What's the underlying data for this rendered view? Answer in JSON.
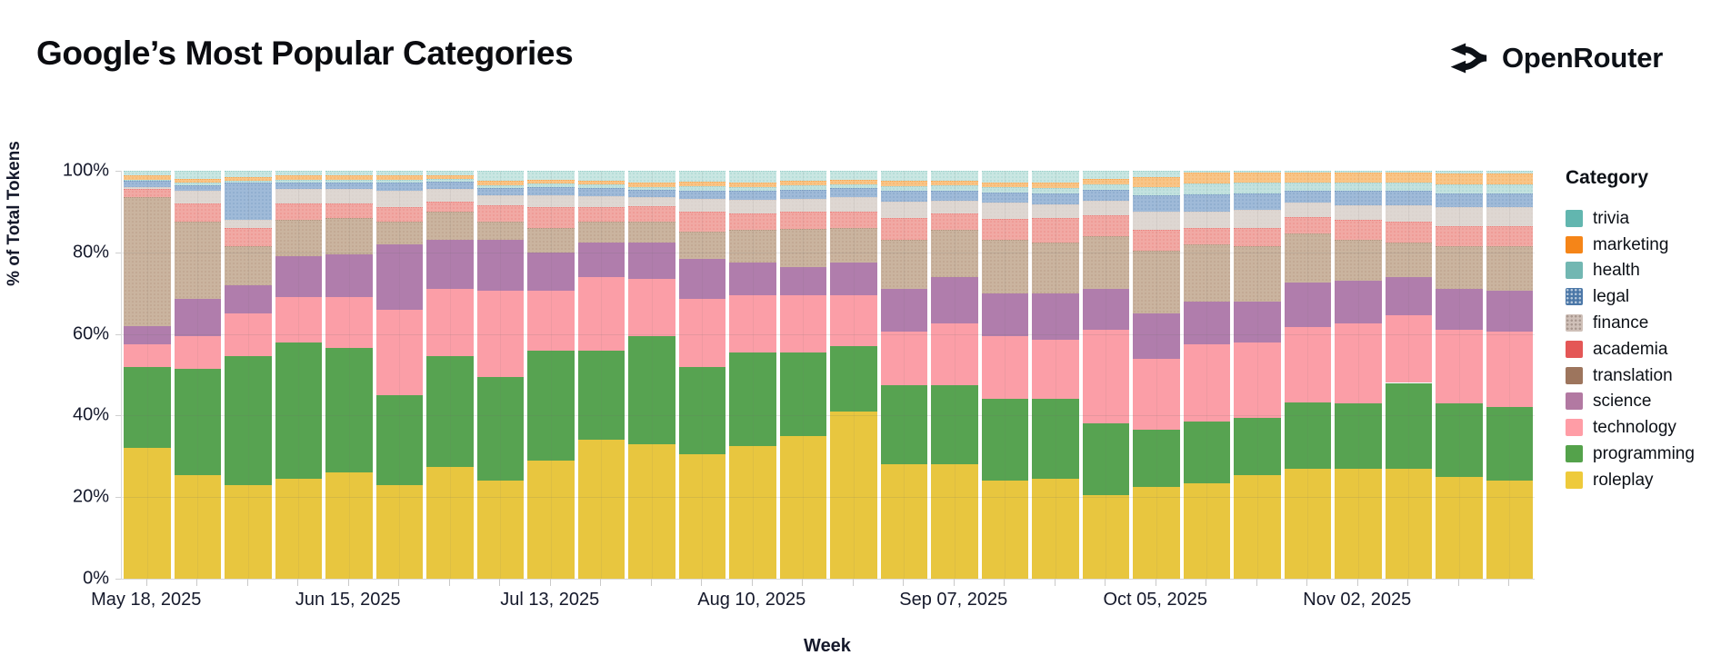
{
  "header": {
    "title": "Google’s Most Popular Categories",
    "brand": "OpenRouter"
  },
  "legend": {
    "title": "Category"
  },
  "chart_data": {
    "type": "bar",
    "subtype": "stacked-percent",
    "title": "Google’s Most Popular Categories",
    "xlabel": "Week",
    "ylabel": "% of Total Tokens",
    "ylim": [
      0,
      100
    ],
    "grid": true,
    "legend_position": "right",
    "y_ticks": [
      {
        "value": 0,
        "label": "0%"
      },
      {
        "value": 20,
        "label": "20%"
      },
      {
        "value": 40,
        "label": "40%"
      },
      {
        "value": 60,
        "label": "60%"
      },
      {
        "value": 80,
        "label": "80%"
      },
      {
        "value": 100,
        "label": "100%"
      }
    ],
    "grid_values": [
      20,
      40,
      60,
      80
    ],
    "x_tick_labels": [
      {
        "bar_index": 0,
        "label": "May 18, 2025"
      },
      {
        "bar_index": 4,
        "label": "Jun 15, 2025"
      },
      {
        "bar_index": 8,
        "label": "Jul 13, 2025"
      },
      {
        "bar_index": 12,
        "label": "Aug 10, 2025"
      },
      {
        "bar_index": 16,
        "label": "Sep 07, 2025"
      },
      {
        "bar_index": 20,
        "label": "Oct 05, 2025"
      },
      {
        "bar_index": 24,
        "label": "Nov 02, 2025"
      }
    ],
    "categories": [
      {
        "name": "trivia",
        "legend_color": "#62b6af",
        "band_color": "#c9e6e2",
        "washed": true,
        "legend_dots": false
      },
      {
        "name": "marketing",
        "legend_color": "#f58518",
        "band_color": "#f8c588",
        "washed": true,
        "legend_dots": false
      },
      {
        "name": "health",
        "legend_color": "#72b7b2",
        "band_color": "#c3e2df",
        "washed": true,
        "legend_dots": false
      },
      {
        "name": "legal",
        "legend_color": "#4c78a8",
        "band_color": "#9fbad8",
        "washed": true,
        "legend_dots": true
      },
      {
        "name": "finance",
        "legend_color": "#cfc0b8",
        "band_color": "#ded7d2",
        "washed": true,
        "legend_dots": true
      },
      {
        "name": "academia",
        "legend_color": "#e45756",
        "band_color": "#f1a9a4",
        "washed": true,
        "legend_dots": false
      },
      {
        "name": "translation",
        "legend_color": "#9d755d",
        "band_color": "#cab49f",
        "washed": true,
        "legend_dots": false
      },
      {
        "name": "science",
        "legend_color": "#b279a2",
        "band_color": "#b07dac",
        "washed": false,
        "legend_dots": false
      },
      {
        "name": "technology",
        "legend_color": "#ff9da6",
        "band_color": "#fb9ea7",
        "washed": false,
        "legend_dots": false
      },
      {
        "name": "programming",
        "legend_color": "#54a24b",
        "band_color": "#57a351",
        "washed": false,
        "legend_dots": false
      },
      {
        "name": "roleplay",
        "legend_color": "#eeca3b",
        "band_color": "#e8c63f",
        "washed": false,
        "legend_dots": false
      }
    ],
    "stack_order": [
      "roleplay",
      "programming",
      "technology",
      "science",
      "translation",
      "academia",
      "finance",
      "legal",
      "health",
      "marketing",
      "trivia"
    ],
    "bars": [
      {
        "values": [
          32,
          20,
          5.5,
          4.5,
          31.5,
          2,
          0.5,
          1.5,
          0.3,
          1,
          1.2
        ]
      },
      {
        "values": [
          25.5,
          26,
          8,
          9,
          19,
          4.5,
          3,
          1.5,
          0.5,
          1,
          2
        ]
      },
      {
        "values": [
          23,
          31.5,
          10.5,
          7,
          9.5,
          4.5,
          2,
          9,
          0.5,
          1,
          1.5
        ]
      },
      {
        "values": [
          24.5,
          33.5,
          11,
          10,
          9,
          4,
          3.5,
          1.5,
          0.8,
          1,
          1.2
        ]
      },
      {
        "values": [
          26,
          30.5,
          12.5,
          10.5,
          9,
          3.5,
          3.5,
          1.5,
          0.8,
          1,
          1.2
        ]
      },
      {
        "values": [
          23,
          22,
          21,
          16,
          5.5,
          3.5,
          4,
          2,
          0.8,
          1,
          1.2
        ]
      },
      {
        "values": [
          27.5,
          27,
          16.5,
          12,
          7,
          2.5,
          3,
          1.8,
          0.7,
          1,
          1
        ]
      },
      {
        "values": [
          24,
          25.5,
          21,
          12.5,
          4.5,
          4,
          2.5,
          1.8,
          0.7,
          1,
          2.5
        ]
      },
      {
        "values": [
          29,
          27,
          14.5,
          9.5,
          6,
          5,
          3,
          2,
          0.8,
          1,
          2.2
        ]
      },
      {
        "values": [
          34,
          22,
          18,
          8.5,
          5,
          3.5,
          2.8,
          2,
          0.8,
          1,
          2.4
        ]
      },
      {
        "values": [
          33,
          26.5,
          14,
          9,
          5,
          3.8,
          2.2,
          1.8,
          0.7,
          1,
          3
        ]
      },
      {
        "values": [
          30.5,
          21.5,
          16.5,
          10,
          6.5,
          5,
          3,
          2.1,
          1.2,
          1,
          2.7
        ]
      },
      {
        "values": [
          32.5,
          23,
          14,
          8,
          8,
          4,
          3.4,
          2.2,
          1,
          1,
          2.9
        ]
      },
      {
        "values": [
          35,
          20.5,
          14,
          7,
          9.3,
          4.1,
          3.3,
          2.2,
          1,
          1.2,
          2.4
        ]
      },
      {
        "values": [
          41,
          16,
          12.5,
          8,
          8.5,
          4,
          3.5,
          2.2,
          1,
          1.1,
          2.2
        ]
      },
      {
        "values": [
          28,
          19.5,
          13,
          10.5,
          12,
          5.4,
          4.1,
          2.6,
          1.2,
          1.2,
          2.5
        ]
      },
      {
        "values": [
          28,
          19.5,
          15,
          11.5,
          11.5,
          4.1,
          3,
          2.6,
          1.2,
          1.2,
          2.4
        ]
      },
      {
        "values": [
          24,
          20,
          15.5,
          10.5,
          13,
          5.2,
          3.9,
          2.6,
          1.2,
          1.3,
          2.8
        ]
      },
      {
        "values": [
          24.5,
          19.5,
          14.5,
          11.5,
          12.5,
          6,
          3.3,
          2.6,
          1.3,
          1.3,
          3
        ]
      },
      {
        "values": [
          20.5,
          17.5,
          23,
          10,
          13,
          5.2,
          3.4,
          2.7,
          1.3,
          1.3,
          2.1
        ]
      },
      {
        "values": [
          22.5,
          14,
          17.5,
          11,
          15.5,
          5,
          4.5,
          4,
          2,
          2.5,
          1.5
        ]
      },
      {
        "values": [
          23.5,
          15,
          19,
          10.5,
          14,
          4,
          4,
          4.3,
          2.5,
          2.7,
          0.5
        ]
      },
      {
        "values": [
          25.5,
          14,
          18.5,
          10,
          13.5,
          4.5,
          4.5,
          4,
          2.5,
          2.5,
          0.5
        ]
      },
      {
        "values": [
          27,
          16.2,
          18.4,
          11,
          12.1,
          4,
          3.5,
          3,
          2,
          2.3,
          0.5
        ]
      },
      {
        "values": [
          27,
          16,
          19.5,
          10.5,
          10,
          5,
          3.5,
          3.5,
          2,
          2.5,
          0.5
        ]
      },
      {
        "values": [
          27,
          21,
          16.5,
          9.5,
          8.5,
          5,
          4,
          3.5,
          2,
          2.5,
          0.5
        ]
      },
      {
        "values": [
          25,
          18,
          18,
          10,
          10.5,
          5,
          4.5,
          3.5,
          2.2,
          2.6,
          0.7
        ]
      },
      {
        "values": [
          24,
          18,
          18.5,
          10,
          11,
          5,
          4.5,
          3.5,
          2.2,
          2.6,
          0.7
        ]
      }
    ]
  }
}
